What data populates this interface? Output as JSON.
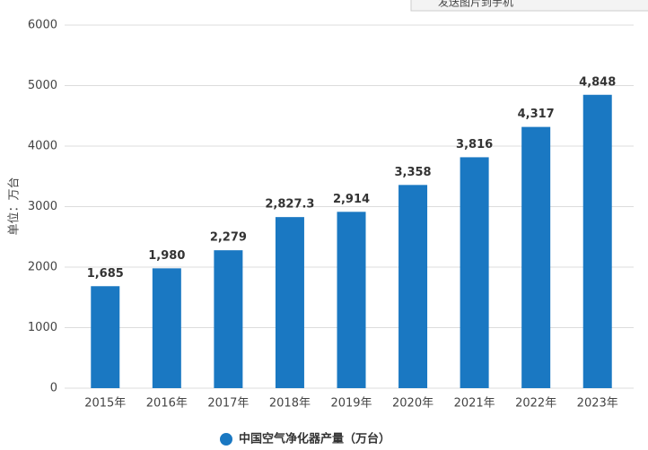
{
  "toolbar_text": "发送图片到手机",
  "chart_data": {
    "type": "bar",
    "y_label": "单位：万台",
    "legend_label": "中国空气净化器产量（万台）",
    "categories": [
      "2015年",
      "2016年",
      "2017年",
      "2018年",
      "2019年",
      "2020年",
      "2021年",
      "2022年",
      "2023年"
    ],
    "values": [
      1685,
      1980,
      2279,
      2827.3,
      2914,
      3358,
      3816,
      4317,
      4848
    ],
    "value_labels": [
      "1,685",
      "1,980",
      "2,279",
      "2,827.3",
      "2,914",
      "3,358",
      "3,816",
      "4,317",
      "4,848"
    ],
    "color": "#1a78c2",
    "ylim": [
      0,
      6000
    ],
    "yticks": [
      0,
      1000,
      2000,
      3000,
      4000,
      5000,
      6000
    ],
    "grid": true
  }
}
